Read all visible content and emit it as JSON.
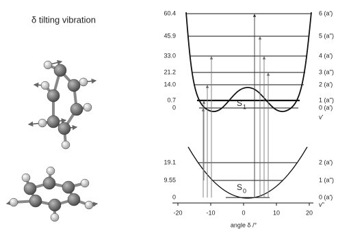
{
  "title": "δ tilting vibration",
  "upper": {
    "label": "S",
    "sub": "1",
    "v_label": "v'",
    "levels": [
      {
        "energy": "60.4",
        "state": "6 (a')"
      },
      {
        "energy": "45.9",
        "state": "5 (a'')"
      },
      {
        "energy": "33.0",
        "state": "4 (a')"
      },
      {
        "energy": "21.2",
        "state": "3 (a'')"
      },
      {
        "energy": "14.0",
        "state": "2 (a')"
      },
      {
        "energy": "0.7",
        "state": "1 (a'')"
      },
      {
        "energy": "0",
        "state": "0 (a')"
      }
    ]
  },
  "lower": {
    "label": "S",
    "sub": "0",
    "v_label": "v''",
    "levels": [
      {
        "energy": "19.1",
        "state": "2 (a')"
      },
      {
        "energy": "9.55",
        "state": "1 (a'')"
      },
      {
        "energy": "0",
        "state": "0 (a')"
      }
    ]
  },
  "axis": {
    "title": "angle δ /°",
    "ticks": [
      "-20",
      "-10",
      "0",
      "10",
      "20"
    ]
  }
}
